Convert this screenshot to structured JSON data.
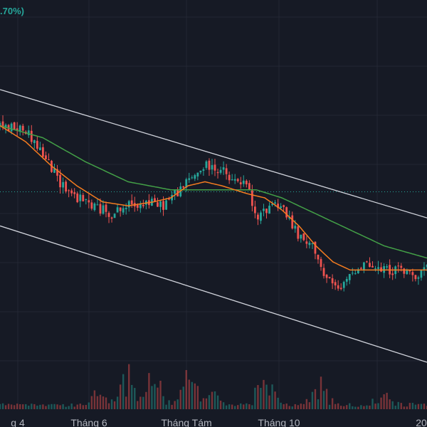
{
  "header": {
    "change_percent_text": ".70%)"
  },
  "colors": {
    "background": "#161a25",
    "grid": "#232733",
    "up": "#26a69a",
    "down": "#ef5350",
    "ma_short": "#f57c20",
    "ma_long": "#43a047",
    "channel": "#d1d4dc",
    "price_line": "#26a69a"
  },
  "chart_data": {
    "type": "candlestick",
    "title": "",
    "xlabel": "",
    "ylabel": "",
    "x_tick_labels": [
      "g 4",
      "Tháng 6",
      "Tháng Tám",
      "Tháng 10",
      "20"
    ],
    "ylim": [
      0,
      100
    ],
    "grid": true,
    "legend": "none",
    "current_price": 53.5,
    "ohlc_knots": [
      [
        0,
        70
      ],
      [
        6,
        69
      ],
      [
        10,
        63
      ],
      [
        14,
        56
      ],
      [
        18,
        52
      ],
      [
        22,
        50
      ],
      [
        26,
        48
      ],
      [
        30,
        50
      ],
      [
        34,
        51
      ],
      [
        38,
        50
      ],
      [
        40,
        52
      ],
      [
        44,
        56
      ],
      [
        48,
        60
      ],
      [
        52,
        59
      ],
      [
        54,
        56
      ],
      [
        56,
        56
      ],
      [
        58,
        55
      ],
      [
        60,
        46
      ],
      [
        62,
        49
      ],
      [
        64,
        51
      ],
      [
        66,
        50
      ],
      [
        70,
        42
      ],
      [
        74,
        39
      ],
      [
        76,
        32
      ],
      [
        78,
        30
      ],
      [
        80,
        29
      ],
      [
        82,
        33
      ],
      [
        84,
        35
      ],
      [
        86,
        36
      ],
      [
        88,
        34
      ],
      [
        90,
        34
      ],
      [
        92,
        34
      ],
      [
        94,
        34
      ],
      [
        96,
        33
      ],
      [
        98,
        33
      ],
      [
        100,
        35
      ]
    ],
    "ma_short_knots": [
      [
        0,
        70
      ],
      [
        6,
        66
      ],
      [
        12,
        60
      ],
      [
        18,
        55
      ],
      [
        24,
        51
      ],
      [
        30,
        50
      ],
      [
        36,
        51
      ],
      [
        40,
        52
      ],
      [
        44,
        55
      ],
      [
        48,
        56
      ],
      [
        52,
        55
      ],
      [
        58,
        53
      ],
      [
        62,
        52
      ],
      [
        66,
        49
      ],
      [
        70,
        45
      ],
      [
        74,
        40
      ],
      [
        78,
        36
      ],
      [
        82,
        34
      ],
      [
        88,
        34
      ],
      [
        94,
        34
      ],
      [
        100,
        34
      ]
    ],
    "ma_long_knots": [
      [
        0,
        70
      ],
      [
        10,
        67
      ],
      [
        20,
        61
      ],
      [
        30,
        56
      ],
      [
        40,
        54
      ],
      [
        50,
        54
      ],
      [
        60,
        54
      ],
      [
        66,
        52
      ],
      [
        72,
        49
      ],
      [
        80,
        45
      ],
      [
        90,
        40
      ],
      [
        100,
        37
      ]
    ],
    "channel_upper": {
      "from": [
        0,
        79
      ],
      "to": [
        100,
        47
      ]
    },
    "channel_lower": {
      "from": [
        0,
        45
      ],
      "to": [
        100,
        11
      ]
    },
    "volume_profile": {
      "baseline": 4,
      "peaks": [
        [
          24,
          16
        ],
        [
          30,
          22
        ],
        [
          36,
          28
        ],
        [
          44,
          30
        ],
        [
          50,
          22
        ],
        [
          62,
          28
        ],
        [
          75,
          18
        ],
        [
          90,
          10
        ]
      ]
    }
  }
}
